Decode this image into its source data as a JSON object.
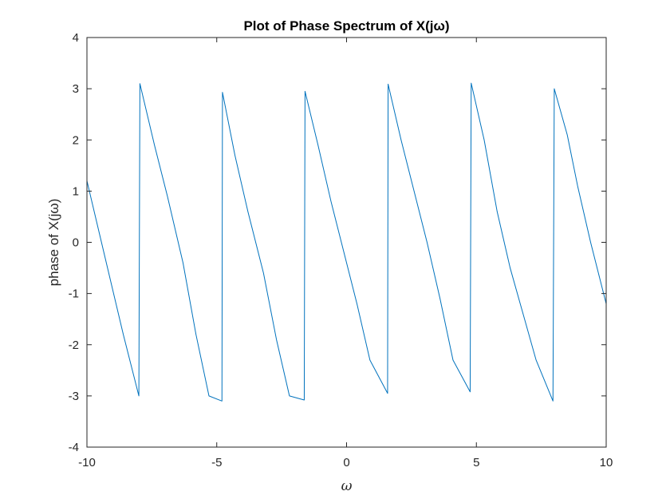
{
  "chart_data": {
    "type": "line",
    "title": "Plot of Phase Spectrum of X(jω)",
    "xlabel": "ω",
    "ylabel": "phase of X(jω)",
    "xlim": [
      -10,
      10
    ],
    "ylim": [
      -4,
      4
    ],
    "xticks": [
      -10,
      -5,
      0,
      5,
      10
    ],
    "xtick_labels": [
      "-10",
      "-5",
      "0",
      "5",
      "10"
    ],
    "yticks": [
      -4,
      -3,
      -2,
      -1,
      0,
      1,
      2,
      3,
      4
    ],
    "ytick_labels": [
      "-4",
      "-3",
      "-2",
      "-1",
      "0",
      "1",
      "2",
      "3",
      "4"
    ],
    "grid": false,
    "legend": "none",
    "series": [
      {
        "color": "#0072bd",
        "x": [
          -10.0,
          -9.3,
          -8.6,
          -8.0,
          -7.96,
          -7.4,
          -6.9,
          -6.3,
          -5.8,
          -5.3,
          -4.8,
          -4.78,
          -4.3,
          -3.8,
          -3.2,
          -2.7,
          -2.2,
          -1.63,
          -1.6,
          -1.1,
          -0.6,
          -0.1,
          0.4,
          0.9,
          1.58,
          1.6,
          2.1,
          2.6,
          3.1,
          3.6,
          4.1,
          4.76,
          4.8,
          5.3,
          5.8,
          6.3,
          6.8,
          7.3,
          7.95,
          8.0,
          8.5,
          8.9,
          9.4,
          10.0
        ],
        "y": [
          1.2,
          -0.3,
          -1.8,
          -3.0,
          3.1,
          1.9,
          0.9,
          -0.4,
          -1.8,
          -3.0,
          -3.1,
          2.93,
          1.7,
          0.6,
          -0.6,
          -1.9,
          -3.0,
          -3.08,
          2.95,
          1.9,
          0.8,
          -0.2,
          -1.2,
          -2.3,
          -2.95,
          3.09,
          2.0,
          1.0,
          0.0,
          -1.1,
          -2.3,
          -2.92,
          3.11,
          2.0,
          0.6,
          -0.5,
          -1.4,
          -2.3,
          -3.1,
          3.0,
          2.1,
          1.1,
          0.0,
          -1.2
        ]
      }
    ]
  }
}
